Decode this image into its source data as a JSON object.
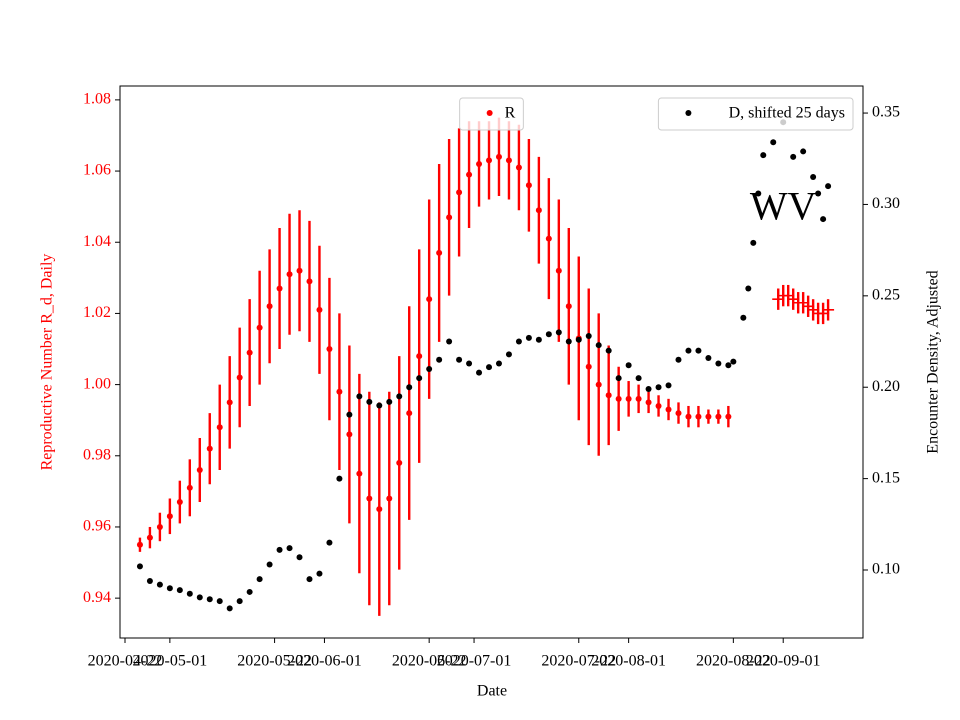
{
  "chart_data": {
    "type": "scatter",
    "xlabel": "Date",
    "ylabel": "Reproductive Number R_d, Daily",
    "y2label": "Encounter Density, Adjusted",
    "ycolor": "red",
    "legend": "upper center",
    "legend2": "upper right",
    "xlim": [
      "2020-04-21",
      "2020-09-17"
    ],
    "xticks": [
      "2020-04-22",
      "2020-05-01",
      "2020-05-22",
      "2020-06-01",
      "2020-06-22",
      "2020-07-01",
      "2020-07-22",
      "2020-08-01",
      "2020-08-22",
      "2020-09-01"
    ],
    "ylim": [
      0.9288,
      1.0839
    ],
    "yticks": [
      0.94,
      0.96,
      0.98,
      {
        "value": 1,
        "label": "1.00"
      },
      1.02,
      1.04,
      1.06,
      1.08
    ],
    "y2lim": [
      0.0628,
      0.3648
    ],
    "y2ticks": [
      {
        "value": 0.1,
        "label": "0.10"
      },
      0.15,
      {
        "value": 0.2,
        "label": "0.20"
      },
      0.25,
      {
        "value": 0.3,
        "label": "0.30"
      },
      0.35
    ],
    "annotation": {
      "text": "WV",
      "x": "2020-09-01",
      "y": 1.049
    },
    "series": [
      {
        "name": "R",
        "color": "red",
        "marker": "o",
        "x": [
          "2020-04-25",
          "2020-04-27",
          "2020-04-29",
          "2020-05-01",
          "2020-05-03",
          "2020-05-05",
          "2020-05-07",
          "2020-05-09",
          "2020-05-11",
          "2020-05-13",
          "2020-05-15",
          "2020-05-17",
          "2020-05-19",
          "2020-05-21",
          "2020-05-23",
          "2020-05-25",
          "2020-05-27",
          "2020-05-29",
          "2020-05-31",
          "2020-06-02",
          "2020-06-04",
          "2020-06-06",
          "2020-06-08",
          "2020-06-10",
          "2020-06-12",
          "2020-06-14",
          "2020-06-16",
          "2020-06-18",
          "2020-06-20",
          "2020-06-22",
          "2020-06-24",
          "2020-06-26",
          "2020-06-28",
          "2020-06-30",
          "2020-07-02",
          "2020-07-04",
          "2020-07-06",
          "2020-07-08",
          "2020-07-10",
          "2020-07-12",
          "2020-07-14",
          "2020-07-16",
          "2020-07-18",
          "2020-07-20",
          "2020-07-22",
          "2020-07-24",
          "2020-07-26",
          "2020-07-28",
          "2020-07-30",
          "2020-08-01",
          "2020-08-03",
          "2020-08-05",
          "2020-08-07",
          "2020-08-09",
          "2020-08-11",
          "2020-08-13",
          "2020-08-15",
          "2020-08-17",
          "2020-08-19",
          "2020-08-21"
        ],
        "values": [
          0.955,
          0.957,
          0.96,
          0.963,
          0.967,
          0.971,
          0.976,
          0.982,
          0.988,
          0.995,
          1.002,
          1.009,
          1.016,
          1.022,
          1.027,
          1.031,
          1.032,
          1.029,
          1.021,
          1.01,
          0.998,
          0.986,
          0.975,
          0.968,
          0.965,
          0.968,
          0.978,
          0.992,
          1.008,
          1.024,
          1.037,
          1.047,
          1.054,
          1.059,
          1.062,
          1.063,
          1.064,
          1.063,
          1.061,
          1.056,
          1.049,
          1.041,
          1.032,
          1.022,
          1.013,
          1.005,
          1,
          0.997,
          0.996,
          0.996,
          0.996,
          0.995,
          0.994,
          0.993,
          0.992,
          0.991,
          0.991,
          0.991,
          0.991,
          0.991
        ],
        "errors": [
          0.002,
          0.003,
          0.004,
          0.005,
          0.006,
          0.008,
          0.009,
          0.01,
          0.012,
          0.013,
          0.014,
          0.015,
          0.016,
          0.016,
          0.017,
          0.017,
          0.017,
          0.017,
          0.018,
          0.02,
          0.022,
          0.025,
          0.028,
          0.03,
          0.03,
          0.03,
          0.03,
          0.03,
          0.03,
          0.028,
          0.025,
          0.022,
          0.018,
          0.015,
          0.012,
          0.011,
          0.011,
          0.011,
          0.012,
          0.013,
          0.015,
          0.017,
          0.02,
          0.022,
          0.023,
          0.022,
          0.02,
          0.014,
          0.009,
          0.005,
          0.004,
          0.003,
          0.003,
          0.003,
          0.003,
          0.003,
          0.003,
          0.002,
          0.002,
          0.003
        ]
      },
      {
        "color": "red",
        "marker": "+",
        "x": [
          "2020-08-31",
          "2020-09-01",
          "2020-09-02",
          "2020-09-03",
          "2020-09-04",
          "2020-09-05",
          "2020-09-06",
          "2020-09-07",
          "2020-09-08",
          "2020-09-09",
          "2020-09-10"
        ],
        "values": [
          1.024,
          1.025,
          1.025,
          1.024,
          1.023,
          1.023,
          1.022,
          1.021,
          1.02,
          1.02,
          1.021
        ],
        "errors": [
          0.003,
          0.003,
          0.003,
          0.003,
          0.003,
          0.003,
          0.003,
          0.003,
          0.003,
          0.003,
          0.003
        ]
      },
      {
        "name": "D, shifted 25 days",
        "color": "black",
        "marker": "o",
        "axis": "y2",
        "x": [
          "2020-04-25",
          "2020-04-27",
          "2020-04-29",
          "2020-05-01",
          "2020-05-03",
          "2020-05-05",
          "2020-05-07",
          "2020-05-09",
          "2020-05-11",
          "2020-05-13",
          "2020-05-15",
          "2020-05-17",
          "2020-05-19",
          "2020-05-21",
          "2020-05-23",
          "2020-05-25",
          "2020-05-27",
          "2020-05-29",
          "2020-05-31",
          "2020-06-02",
          "2020-06-04",
          "2020-06-06",
          "2020-06-08",
          "2020-06-10",
          "2020-06-12",
          "2020-06-14",
          "2020-06-16",
          "2020-06-18",
          "2020-06-20",
          "2020-06-22",
          "2020-06-24",
          "2020-06-26",
          "2020-06-28",
          "2020-06-30",
          "2020-07-02",
          "2020-07-04",
          "2020-07-06",
          "2020-07-08",
          "2020-07-10",
          "2020-07-12",
          "2020-07-14",
          "2020-07-16",
          "2020-07-18",
          "2020-07-20",
          "2020-07-22",
          "2020-07-24",
          "2020-07-26",
          "2020-07-28",
          "2020-07-30",
          "2020-08-01",
          "2020-08-03",
          "2020-08-05",
          "2020-08-07",
          "2020-08-09",
          "2020-08-11",
          "2020-08-13",
          "2020-08-15",
          "2020-08-17",
          "2020-08-19",
          "2020-08-21",
          "2020-08-22",
          "2020-08-24",
          "2020-08-25",
          "2020-08-26",
          "2020-08-27",
          "2020-08-28",
          "2020-08-30",
          "2020-09-01",
          "2020-09-03",
          "2020-09-05",
          "2020-09-07",
          "2020-09-08",
          "2020-09-09",
          "2020-09-10"
        ],
        "values": [
          0.102,
          0.094,
          0.092,
          0.09,
          0.089,
          0.087,
          0.085,
          0.084,
          0.083,
          0.079,
          0.083,
          0.088,
          0.095,
          0.103,
          0.111,
          0.112,
          0.107,
          0.095,
          0.098,
          0.115,
          0.15,
          0.185,
          0.195,
          0.192,
          0.19,
          0.192,
          0.195,
          0.2,
          0.205,
          0.21,
          0.215,
          0.225,
          0.215,
          0.213,
          0.208,
          0.211,
          0.213,
          0.218,
          0.225,
          0.227,
          0.226,
          0.229,
          0.23,
          0.225,
          0.226,
          0.228,
          0.223,
          0.22,
          0.205,
          0.212,
          0.205,
          0.199,
          0.2,
          0.201,
          0.215,
          0.22,
          0.22,
          0.216,
          0.213,
          0.212,
          0.214,
          0.238,
          0.254,
          0.279,
          0.306,
          0.327,
          0.334,
          0.345,
          0.326,
          0.329,
          0.315,
          0.306,
          0.292,
          0.31
        ]
      }
    ]
  }
}
